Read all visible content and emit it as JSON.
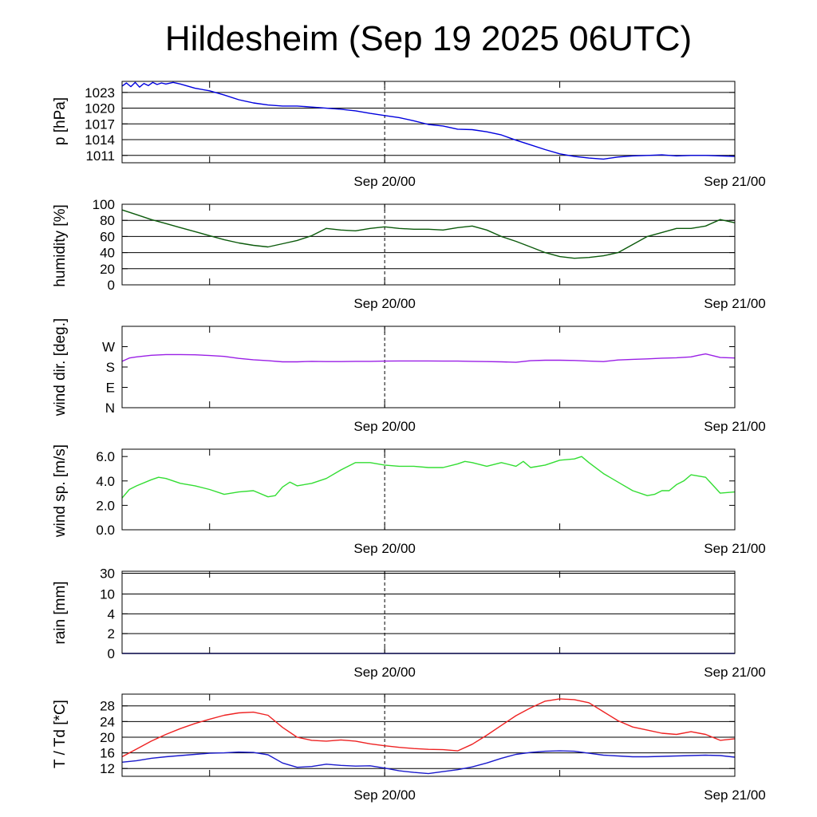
{
  "title": "Hildesheim (Sep 19 2025 06UTC)",
  "colors": {
    "pressure": "#0000dd",
    "humidity": "#0b5a0b",
    "wind_dir": "#9a1fe6",
    "wind_speed": "#33dd33",
    "rain": "#0000cc",
    "temperature": "#ee2222",
    "dewpoint": "#1a1acc"
  },
  "chart_data": [
    {
      "type": "line",
      "name": "pressure",
      "ylabel": "p [hPa]",
      "x_ticks": [
        "Sep 20/00",
        "Sep 21/00"
      ],
      "x_range_hours": [
        0,
        42
      ],
      "ylim": [
        1009.6,
        1025.1
      ],
      "yticks": [
        1011,
        1014,
        1017,
        1020,
        1023
      ],
      "grid": true,
      "series": [
        {
          "x": [
            0,
            0.3,
            0.6,
            0.9,
            1.2,
            1.5,
            1.8,
            2.1,
            2.4,
            2.7,
            3.0,
            3.5,
            4.0,
            5,
            6,
            7,
            8,
            9,
            10,
            11,
            12,
            13,
            14,
            15,
            16,
            17,
            18,
            19,
            20,
            21,
            22,
            23,
            24,
            25,
            26,
            27,
            28,
            29,
            30,
            31,
            32,
            33,
            34,
            35,
            36,
            37,
            38,
            39,
            40,
            41,
            42
          ],
          "y": [
            1024.2,
            1024.8,
            1024.1,
            1024.9,
            1024.0,
            1024.7,
            1024.3,
            1024.9,
            1024.5,
            1024.8,
            1024.6,
            1024.9,
            1024.6,
            1023.8,
            1023.3,
            1022.5,
            1021.6,
            1021.0,
            1020.6,
            1020.4,
            1020.4,
            1020.2,
            1020.0,
            1019.8,
            1019.5,
            1019.0,
            1018.6,
            1018.2,
            1017.6,
            1016.9,
            1016.6,
            1016.0,
            1015.9,
            1015.5,
            1014.9,
            1013.9,
            1013.0,
            1012.1,
            1011.3,
            1010.8,
            1010.5,
            1010.3,
            1010.7,
            1010.9,
            1011.0,
            1011.1,
            1010.9,
            1011.0,
            1011.0,
            1010.9,
            1010.8
          ]
        }
      ]
    },
    {
      "type": "line",
      "name": "humidity",
      "ylabel": "humidity [%]",
      "x_ticks": [
        "Sep 20/00",
        "Sep 21/00"
      ],
      "x_range_hours": [
        0,
        42
      ],
      "ylim": [
        0,
        100
      ],
      "yticks": [
        0,
        20,
        40,
        60,
        80,
        100
      ],
      "grid": true,
      "series": [
        {
          "x": [
            0,
            1,
            2,
            3,
            4,
            5,
            6,
            7,
            8,
            9,
            10,
            11,
            12,
            13,
            14,
            15,
            16,
            17,
            18,
            19,
            20,
            21,
            22,
            23,
            24,
            25,
            26,
            27,
            28,
            29,
            30,
            31,
            32,
            33,
            34,
            35,
            36,
            37,
            38,
            39,
            40,
            41,
            42
          ],
          "y": [
            93,
            87,
            81,
            76,
            71,
            66,
            61,
            56,
            52,
            49,
            47,
            51,
            55,
            61,
            70,
            68,
            67,
            70,
            72,
            70,
            69,
            69,
            68,
            71,
            73,
            68,
            60,
            54,
            47,
            40,
            35,
            33,
            34,
            36,
            40,
            50,
            60,
            65,
            70,
            70,
            73,
            81,
            77
          ]
        }
      ]
    },
    {
      "type": "line",
      "name": "wind direction",
      "ylabel": "wind dir. [deg.]",
      "x_ticks": [
        "Sep 20/00",
        "Sep 21/00"
      ],
      "x_range_hours": [
        0,
        42
      ],
      "ylim": [
        0,
        360
      ],
      "yticks": [
        0,
        90,
        180,
        270
      ],
      "ytick_labels": [
        "N",
        "E",
        "S",
        "W"
      ],
      "grid": false,
      "series": [
        {
          "x": [
            0,
            0.5,
            1,
            2,
            3,
            4,
            5,
            6,
            7,
            8,
            9,
            10,
            11,
            12,
            13,
            14,
            15,
            16,
            17,
            18,
            19,
            20,
            21,
            22,
            23,
            24,
            25,
            26,
            27,
            28,
            29,
            30,
            31,
            32,
            33,
            34,
            35,
            36,
            37,
            38,
            39,
            39.5,
            40,
            40.5,
            41,
            42
          ],
          "y": [
            205,
            220,
            225,
            232,
            235,
            235,
            234,
            231,
            227,
            218,
            212,
            208,
            203,
            203,
            205,
            204,
            204,
            205,
            205,
            206,
            207,
            207,
            207,
            206,
            206,
            205,
            204,
            203,
            201,
            208,
            210,
            210,
            209,
            206,
            204,
            211,
            214,
            216,
            219,
            221,
            225,
            232,
            238,
            230,
            222,
            220
          ]
        }
      ]
    },
    {
      "type": "line",
      "name": "wind speed",
      "ylabel": "wind sp. [m/s]",
      "x_ticks": [
        "Sep 20/00",
        "Sep 21/00"
      ],
      "x_range_hours": [
        0,
        42
      ],
      "ylim": [
        0,
        6.6
      ],
      "yticks": [
        0.0,
        2.0,
        4.0,
        6.0
      ],
      "ytick_labels": [
        "0.0",
        "2.0",
        "4.0",
        "6.0"
      ],
      "grid": false,
      "series": [
        {
          "x": [
            0,
            0.5,
            1,
            2,
            2.5,
            3,
            4,
            5,
            6,
            7,
            8,
            9,
            10,
            10.5,
            11,
            11.5,
            12,
            13,
            14,
            15,
            16,
            17,
            18,
            19,
            20,
            21,
            22,
            23,
            23.5,
            24,
            25,
            26,
            27,
            27.5,
            28,
            29,
            30,
            31,
            31.5,
            32,
            33,
            34,
            35,
            36,
            36.5,
            37,
            37.5,
            38,
            38.5,
            39,
            40,
            41,
            42
          ],
          "y": [
            2.6,
            3.3,
            3.6,
            4.1,
            4.3,
            4.2,
            3.8,
            3.6,
            3.3,
            2.9,
            3.1,
            3.2,
            2.7,
            2.8,
            3.5,
            3.9,
            3.6,
            3.8,
            4.2,
            4.9,
            5.5,
            5.5,
            5.3,
            5.2,
            5.2,
            5.1,
            5.1,
            5.4,
            5.6,
            5.5,
            5.2,
            5.5,
            5.2,
            5.6,
            5.1,
            5.3,
            5.7,
            5.8,
            6.0,
            5.5,
            4.6,
            3.9,
            3.2,
            2.8,
            2.9,
            3.2,
            3.2,
            3.7,
            4.0,
            4.5,
            4.3,
            3.0,
            3.1
          ]
        }
      ]
    },
    {
      "type": "line",
      "name": "rain",
      "ylabel": "rain [mm]",
      "x_ticks": [
        "Sep 20/00",
        "Sep 21/00"
      ],
      "x_range_hours": [
        0,
        42
      ],
      "scale": "nonlinear",
      "yticks": [
        0,
        2,
        4,
        10,
        30
      ],
      "ytick_labels": [
        "0",
        "2",
        "4",
        "10",
        "30"
      ],
      "grid": true,
      "series": [
        {
          "x": [
            0,
            42
          ],
          "y": [
            0,
            0
          ]
        }
      ]
    },
    {
      "type": "line",
      "name": "temperature / dewpoint",
      "ylabel": "T / Td [*C]",
      "x_ticks": [
        "Sep 20/00",
        "Sep 21/00"
      ],
      "x_range_hours": [
        0,
        42
      ],
      "ylim": [
        10,
        31
      ],
      "yticks": [
        12,
        16,
        20,
        24,
        28
      ],
      "grid": true,
      "series": [
        {
          "x": [
            0,
            1,
            2,
            3,
            4,
            5,
            6,
            7,
            8,
            9,
            10,
            11,
            12,
            13,
            14,
            15,
            16,
            17,
            18,
            19,
            20,
            21,
            22,
            23,
            24,
            25,
            26,
            27,
            28,
            29,
            30,
            31,
            32,
            33,
            34,
            35,
            36,
            37,
            38,
            39,
            40,
            41,
            42
          ],
          "y": [
            15,
            17,
            19,
            20.7,
            22.2,
            23.5,
            24.6,
            25.6,
            26.2,
            26.4,
            25.6,
            22.5,
            20.0,
            19.2,
            19.0,
            19.3,
            19.0,
            18.3,
            17.8,
            17.4,
            17.1,
            16.9,
            16.8,
            16.5,
            18.2,
            20.5,
            23,
            25.5,
            27.5,
            29.2,
            29.8,
            29.6,
            28.8,
            26.5,
            24.2,
            22.6,
            21.8,
            21,
            20.7,
            21.4,
            20.7,
            19.2,
            19.6
          ]
        },
        {
          "x": [
            0,
            1,
            2,
            3,
            4,
            5,
            6,
            7,
            8,
            9,
            10,
            11,
            12,
            13,
            14,
            15,
            16,
            17,
            18,
            19,
            20,
            21,
            22,
            23,
            24,
            25,
            26,
            27,
            28,
            29,
            30,
            31,
            32,
            33,
            34,
            35,
            36,
            37,
            38,
            39,
            40,
            41,
            42
          ],
          "y": [
            13.6,
            14.0,
            14.6,
            15.0,
            15.3,
            15.6,
            15.9,
            16.0,
            16.2,
            16.1,
            15.5,
            13.4,
            12.3,
            12.5,
            13.1,
            12.8,
            12.6,
            12.7,
            12.1,
            11.4,
            11.0,
            10.7,
            11.2,
            11.7,
            12.4,
            13.4,
            14.6,
            15.6,
            16.1,
            16.4,
            16.5,
            16.4,
            15.9,
            15.4,
            15.2,
            15.0,
            15.0,
            15.1,
            15.2,
            15.3,
            15.4,
            15.3,
            14.9
          ]
        }
      ]
    }
  ]
}
